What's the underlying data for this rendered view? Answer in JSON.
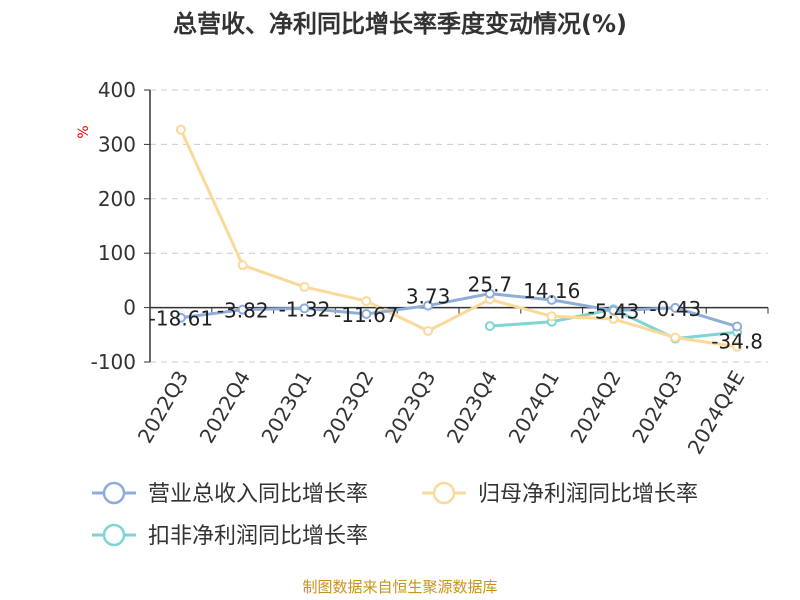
{
  "chart_data": {
    "type": "line",
    "title": "总营收、净利同比增长率季度变动情况(%)",
    "ylabel": "%",
    "xlabel": "",
    "ylim": [
      -100,
      400
    ],
    "yticks": [
      "400",
      "300",
      "200",
      "100",
      "0",
      "-100"
    ],
    "grid": true,
    "legend_position": "bottom",
    "categories": [
      "2022Q3",
      "2022Q4",
      "2023Q1",
      "2023Q2",
      "2023Q3",
      "2023Q4",
      "2024Q1",
      "2024Q2",
      "2024Q3",
      "2024Q4E"
    ],
    "series": [
      {
        "name": "营业总收入同比增长率",
        "color": "#8fadd9",
        "values": [
          -18.61,
          -3.82,
          -1.32,
          -11.67,
          3.73,
          25.7,
          14.16,
          -5.43,
          -0.43,
          -34.8
        ],
        "labels": [
          "-18.61",
          "-3.82",
          "-1.32",
          "-11.67",
          "3.73",
          "25.7",
          "14.16",
          "-5.43",
          "-0.43",
          "-34.8"
        ]
      },
      {
        "name": "归母净利润同比增长率",
        "color": "#fbd99a",
        "values": [
          327,
          78,
          38,
          12,
          -43,
          15,
          -16,
          -21,
          -55,
          -72
        ]
      },
      {
        "name": "扣非净利润同比增长率",
        "color": "#7fd4d4",
        "values": [
          null,
          null,
          null,
          null,
          null,
          -34,
          -26,
          -3,
          -57,
          -45
        ]
      }
    ]
  },
  "source": "制图数据来自恒生聚源数据库"
}
